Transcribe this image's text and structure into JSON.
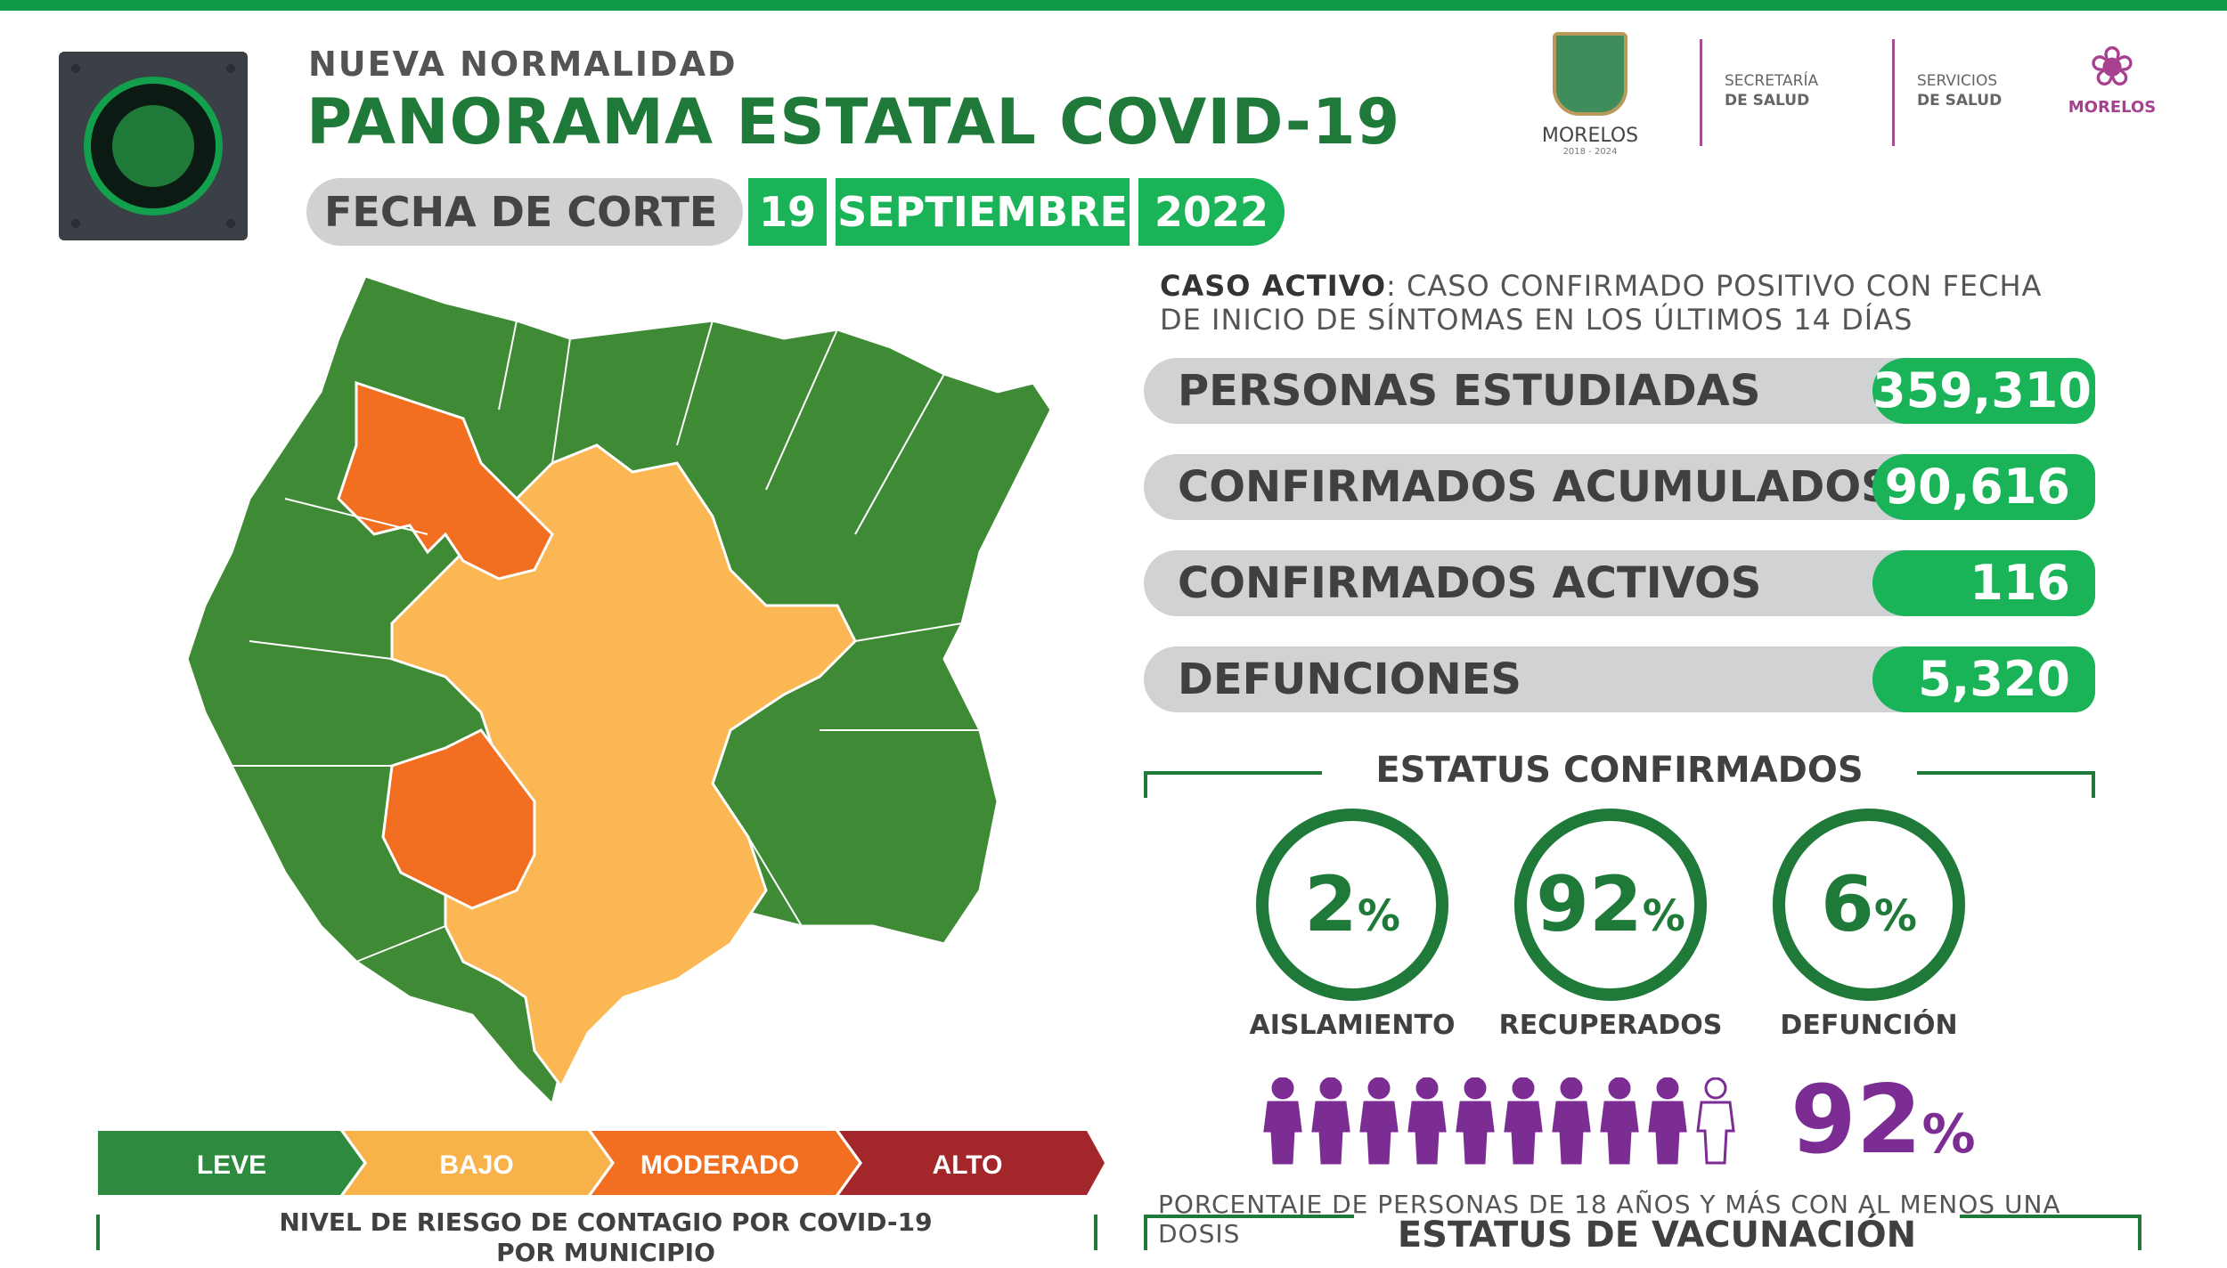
{
  "header": {
    "subtitle": "NUEVA  NORMALIDAD",
    "title": "PANORAMA ESTATAL COVID-19",
    "fecha_label": "FECHA DE CORTE",
    "day": "19",
    "month": "SEPTIEMBRE",
    "year": "2022"
  },
  "logos": {
    "morelos_name": "MORELOS",
    "morelos_years": "2018 - 2024",
    "secretaria": [
      "SECRETARÍA",
      "DE SALUD"
    ],
    "servicios": [
      "SERVICIOS",
      "DE SALUD"
    ],
    "lotus_name": "MORELOS"
  },
  "caso_activo": {
    "label": "CASO ACTIVO",
    "text": ": CASO CONFIRMADO POSITIVO CON FECHA DE INICIO DE SÍNTOMAS EN LOS ÚLTIMOS 14 DÍAS"
  },
  "stats": [
    {
      "label": "PERSONAS ESTUDIADAS",
      "value": "359,310"
    },
    {
      "label": "CONFIRMADOS ACUMULADOS",
      "value": "90,616"
    },
    {
      "label": "CONFIRMADOS ACTIVOS",
      "value": "116"
    },
    {
      "label": "DEFUNCIONES",
      "value": "5,320"
    }
  ],
  "estatus": {
    "title": "ESTATUS CONFIRMADOS",
    "items": [
      {
        "pct": "2",
        "label": "AISLAMIENTO"
      },
      {
        "pct": "92",
        "label": "RECUPERADOS"
      },
      {
        "pct": "6",
        "label": "DEFUNCIÓN"
      }
    ],
    "percent_sign": "%"
  },
  "vacunacion": {
    "pct": "92",
    "percent_sign": "%",
    "people_filled_fraction": 0.92,
    "note": "PORCENTAJE DE PERSONAS DE 18 AÑOS Y MÁS CON AL MENOS UNA DOSIS",
    "title": "ESTATUS DE VACUNACIÓN"
  },
  "legend": {
    "levels": [
      {
        "label": "LEVE",
        "color": "#2e8a3e"
      },
      {
        "label": "BAJO",
        "color": "#f7b24a"
      },
      {
        "label": "MODERADO",
        "color": "#f26f21"
      },
      {
        "label": "ALTO",
        "color": "#a3262a"
      }
    ],
    "caption": "NIVEL DE RIESGO DE CONTAGIO POR COVID-19 POR MUNICIPIO"
  },
  "colors": {
    "green_dark": "#1f7a3a",
    "green_bright": "#1bb358",
    "purple": "#7b2d93",
    "map_green": "#3f8a35",
    "map_yellow": "#fbb754",
    "map_orange": "#f26f21"
  }
}
